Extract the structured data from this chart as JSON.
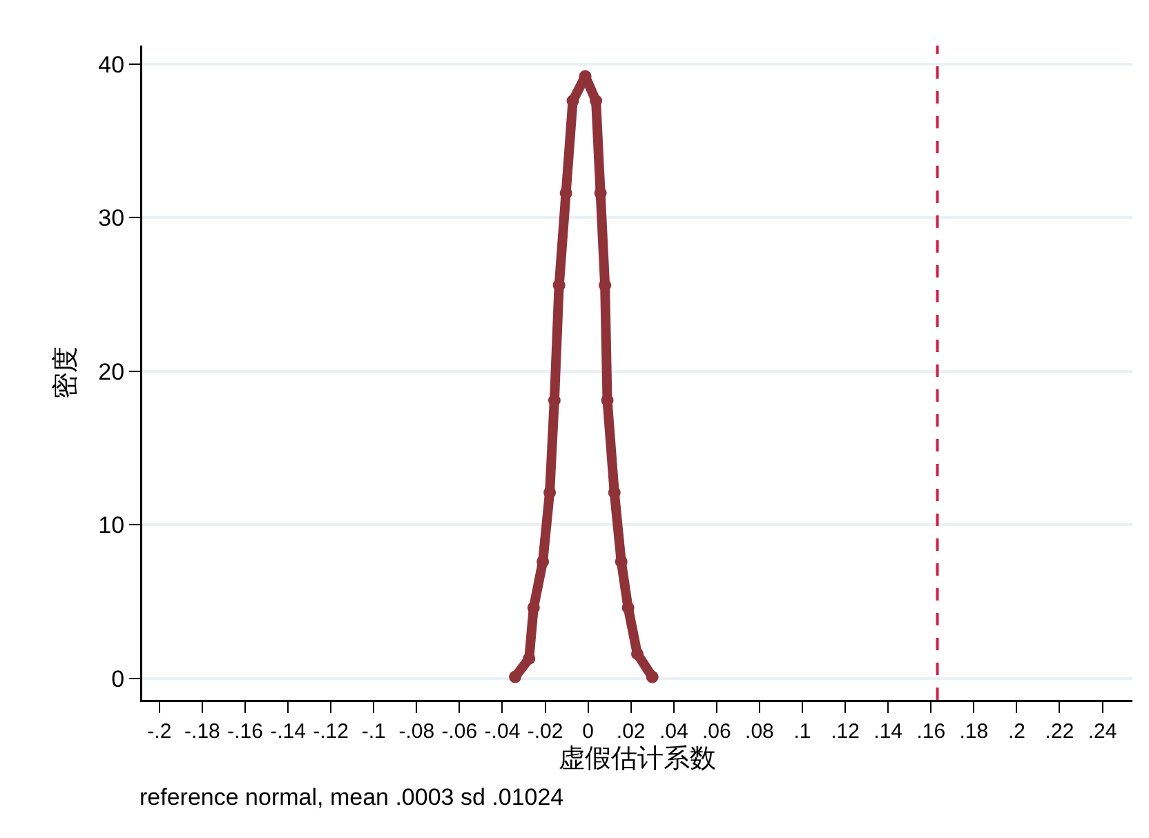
{
  "chart_data": {
    "type": "line",
    "xlabel": "虚假估计系数",
    "ylabel": "密度",
    "annotations": [
      "reference normal, mean .0003 sd .01024"
    ],
    "x": [
      -0.034,
      -0.0275,
      -0.0254,
      -0.0211,
      -0.0179,
      -0.0157,
      -0.0135,
      -0.0103,
      -0.0071,
      -0.0013,
      0.0037,
      0.0058,
      0.0079,
      0.009,
      0.0123,
      0.0155,
      0.0187,
      0.023,
      0.03
    ],
    "series": [
      {
        "color": "#8f3339",
        "values": [
          0.1,
          1.3,
          4.6,
          7.6,
          12.1,
          18.1,
          25.6,
          31.6,
          37.6,
          39.2,
          37.6,
          31.6,
          25.6,
          18.1,
          12.1,
          7.6,
          4.6,
          1.6,
          0.1
        ]
      }
    ],
    "marker": "circle",
    "line_style": "solid",
    "grid": "y",
    "xlim": [
      -0.208,
      0.254
    ],
    "ylim": [
      -1.4,
      41.2
    ],
    "xticks": [
      {
        "value": -0.2,
        "label": "-.2"
      },
      {
        "value": -0.18,
        "label": "-.18"
      },
      {
        "value": -0.16,
        "label": "-.16"
      },
      {
        "value": -0.14,
        "label": "-.14"
      },
      {
        "value": -0.12,
        "label": "-.12"
      },
      {
        "value": -0.1,
        "label": "-.1"
      },
      {
        "value": -0.08,
        "label": "-.08"
      },
      {
        "value": -0.06,
        "label": "-.06"
      },
      {
        "value": -0.04,
        "label": "-.04"
      },
      {
        "value": -0.02,
        "label": "-.02"
      },
      0,
      {
        "value": 0.02,
        "label": ".02"
      },
      {
        "value": 0.04,
        "label": ".04"
      },
      {
        "value": 0.06,
        "label": ".06"
      },
      {
        "value": 0.08,
        "label": ".08"
      },
      {
        "value": 0.1,
        "label": ".1"
      },
      {
        "value": 0.12,
        "label": ".12"
      },
      {
        "value": 0.14,
        "label": ".14"
      },
      {
        "value": 0.16,
        "label": ".16"
      },
      {
        "value": 0.18,
        "label": ".18"
      },
      {
        "value": 0.2,
        "label": ".2"
      },
      {
        "value": 0.22,
        "label": ".22"
      },
      {
        "value": 0.24,
        "label": ".24"
      }
    ],
    "yticks": [
      0,
      10,
      20,
      30,
      40
    ],
    "ref_lines": [
      {
        "axis": "x",
        "value": 0.163,
        "color": "#d0204a",
        "line_style": "dashed"
      }
    ]
  }
}
